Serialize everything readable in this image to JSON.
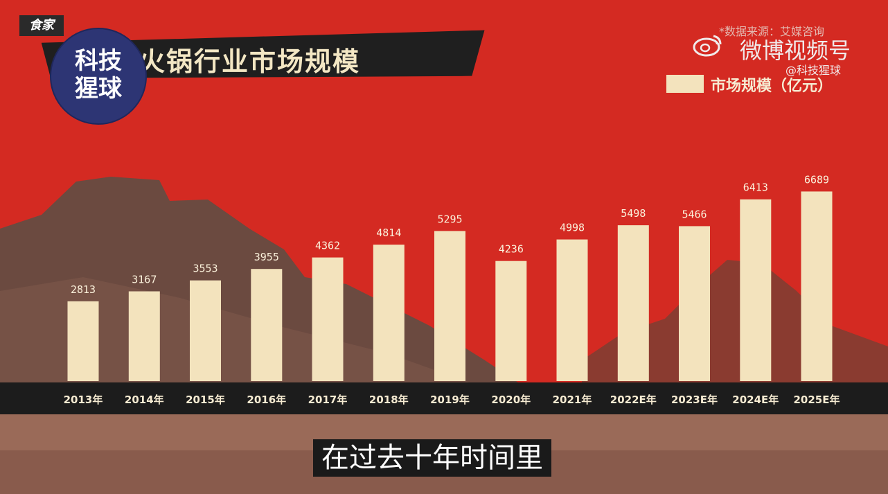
{
  "header": {
    "title": "火锅行业市场规模",
    "brand_circle_text": "科技\n猩球",
    "corner_logo_text": "食家"
  },
  "watermark": {
    "source_text": "*数据来源：艾媒咨询",
    "platform_label": "微博视频号",
    "handle": "@科技猩球",
    "icon": "weibo-logo-icon"
  },
  "legend": {
    "label": "市场规模（亿元）",
    "swatch_color": "#f3e3bd"
  },
  "subtitle": "在过去十年时间里",
  "chart_data": {
    "type": "bar",
    "title": "火锅行业市场规模",
    "categories": [
      "2013年",
      "2014年",
      "2015年",
      "2016年",
      "2017年",
      "2018年",
      "2019年",
      "2020年",
      "2021年",
      "2022E年",
      "2023E年",
      "2024E年",
      "2025E年"
    ],
    "series": [
      {
        "name": "市场规模（亿元）",
        "values": [
          2813,
          3167,
          3553,
          3955,
          4362,
          4814,
          5295,
          4236,
          4998,
          5498,
          5466,
          6413,
          6689
        ]
      }
    ],
    "value_labels": [
      "2813",
      "3167",
      "3553",
      "3955",
      "4362",
      "4814",
      "5295",
      "4236",
      "4998",
      "5498",
      "5466",
      "6413",
      "6689"
    ],
    "xlabel": "",
    "ylabel": "",
    "ylim": [
      0,
      7000
    ],
    "grid": false,
    "legend_position": "top-right",
    "bar_color": "#f3e3bd",
    "background_color": "#d42a22"
  }
}
